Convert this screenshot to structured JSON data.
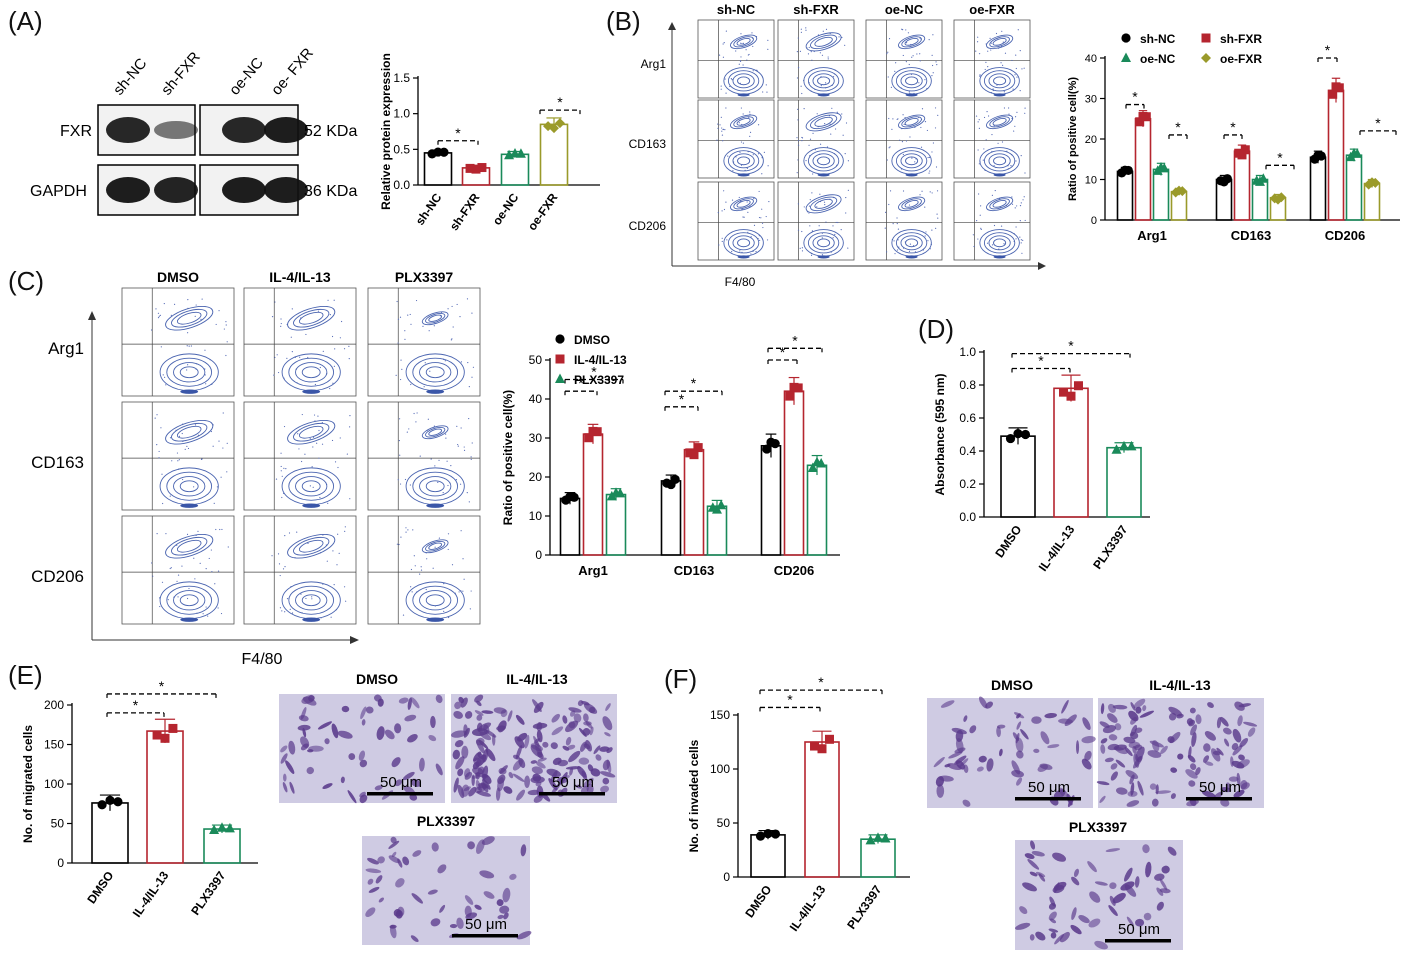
{
  "panels": {
    "A": {
      "letter": "(A)"
    },
    "B": {
      "letter": "(B)"
    },
    "C": {
      "letter": "(C)"
    },
    "D": {
      "letter": "(D)"
    },
    "E": {
      "letter": "(E)"
    },
    "F": {
      "letter": "(F)"
    }
  },
  "western_blot": {
    "lanes": [
      "sh-NC",
      "sh-FXR",
      "oe-NC",
      "oe- FXR"
    ],
    "rows": [
      {
        "label": "FXR",
        "size": "52 KDa"
      },
      {
        "label": "GAPDH",
        "size": "36 KDa"
      }
    ]
  },
  "flow_B": {
    "columns": [
      "sh-NC",
      "sh-FXR",
      "oe-NC",
      "oe-FXR"
    ],
    "rows": [
      "Arg1",
      "CD163",
      "CD206"
    ],
    "x_axis": "F4/80"
  },
  "flow_C": {
    "columns": [
      "DMSO",
      "IL-4/IL-13",
      "PLX3397"
    ],
    "rows": [
      "Arg1",
      "CD163",
      "CD206"
    ],
    "x_axis": "F4/80"
  },
  "micro_E": {
    "labels": [
      "DMSO",
      "IL-4/IL-13",
      "PLX3397"
    ],
    "scale": "50 μm"
  },
  "micro_F": {
    "labels": [
      "DMSO",
      "IL-4/IL-13",
      "PLX3397"
    ],
    "scale": "50 μm"
  },
  "significance_mark": "*",
  "colors": {
    "black": "#000000",
    "red": "#b5252f",
    "green": "#1a8a5a",
    "olive": "#9a9a2a"
  },
  "chart_data": [
    {
      "id": "A",
      "type": "bar",
      "categories": [
        "sh-NC",
        "sh-FXR",
        "oe-NC",
        "oe-FXR"
      ],
      "values": [
        0.45,
        0.24,
        0.43,
        0.85
      ],
      "errors": [
        0.04,
        0.03,
        0.04,
        0.09
      ],
      "ylabel": "Relative protein expression",
      "ylim": [
        0,
        1.5
      ],
      "yticks": [
        "0.0",
        "0.5",
        "1.0",
        "1.5"
      ]
    },
    {
      "id": "B",
      "type": "bar",
      "categories": [
        "Arg1",
        "CD163",
        "CD206"
      ],
      "series": [
        {
          "name": "sh-NC",
          "values": [
            12,
            10,
            15.5
          ],
          "errors": [
            1,
            1,
            1.5
          ]
        },
        {
          "name": "sh-FXR",
          "values": [
            25,
            17,
            32
          ],
          "errors": [
            2,
            1.5,
            3
          ]
        },
        {
          "name": "oe-NC",
          "values": [
            12.5,
            10,
            16
          ],
          "errors": [
            1.5,
            1,
            1.5
          ]
        },
        {
          "name": "oe-FXR",
          "values": [
            7,
            5.5,
            9
          ],
          "errors": [
            0.8,
            0.8,
            1
          ]
        }
      ],
      "ylabel": "Ratio of positive cell(%)",
      "ylim": [
        0,
        40
      ],
      "yticks": [
        "0",
        "10",
        "20",
        "30",
        "40"
      ],
      "legend": "top"
    },
    {
      "id": "C",
      "type": "bar",
      "categories": [
        "Arg1",
        "CD163",
        "CD206"
      ],
      "series": [
        {
          "name": "DMSO",
          "values": [
            14.5,
            19,
            28
          ],
          "errors": [
            1.5,
            1.5,
            3
          ]
        },
        {
          "name": "IL-4/IL-13",
          "values": [
            31,
            27,
            42
          ],
          "errors": [
            2.5,
            2,
            3.5
          ]
        },
        {
          "name": "PLX3397",
          "values": [
            15.5,
            12.5,
            23
          ],
          "errors": [
            1.5,
            1.5,
            2.5
          ]
        }
      ],
      "ylabel": "Ratio of positive cell(%)",
      "ylim": [
        0,
        50
      ],
      "yticks": [
        "0",
        "10",
        "20",
        "30",
        "40",
        "50"
      ],
      "legend": "top-left"
    },
    {
      "id": "D",
      "type": "bar",
      "categories": [
        "DMSO",
        "IL-4/IL-13",
        "PLX3397"
      ],
      "values": [
        0.49,
        0.78,
        0.42
      ],
      "errors": [
        0.05,
        0.08,
        0.03
      ],
      "ylabel": "Absorbance (595 nm)",
      "ylim": [
        0,
        1.0
      ],
      "yticks": [
        "0.0",
        "0.2",
        "0.4",
        "0.6",
        "0.8",
        "1.0"
      ]
    },
    {
      "id": "E",
      "type": "bar",
      "categories": [
        "DMSO",
        "IL-4/IL-13",
        "PLX3397"
      ],
      "values": [
        76,
        167,
        43
      ],
      "errors": [
        10,
        15,
        5
      ],
      "ylabel": "No. of migrated cells",
      "ylim": [
        0,
        200
      ],
      "yticks": [
        "0",
        "50",
        "100",
        "150",
        "200"
      ]
    },
    {
      "id": "F",
      "type": "bar",
      "categories": [
        "DMSO",
        "IL-4/IL-13",
        "PLX3397"
      ],
      "values": [
        39,
        125,
        35
      ],
      "errors": [
        4,
        10,
        4
      ],
      "ylabel": "No. of invaded cells",
      "ylim": [
        0,
        150
      ],
      "yticks": [
        "0",
        "50",
        "100",
        "150"
      ]
    }
  ]
}
